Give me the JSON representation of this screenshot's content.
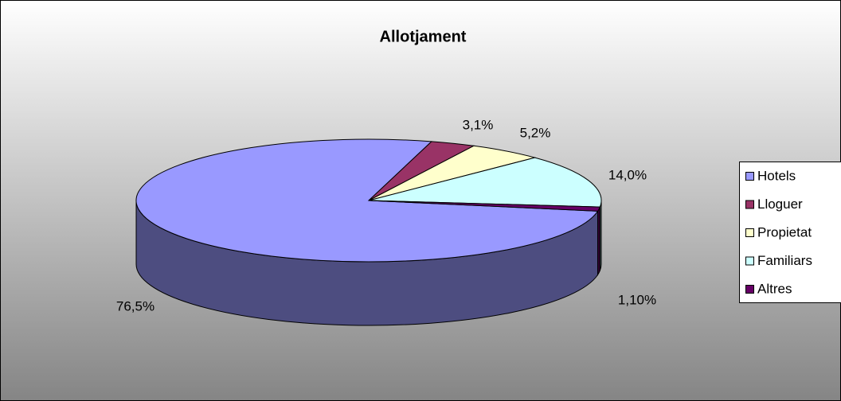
{
  "chart_data": {
    "type": "pie3d",
    "title": "Allotjament",
    "categories": [
      "Hotels",
      "Lloguer",
      "Propietat",
      "Familiars",
      "Altres"
    ],
    "values": [
      76.5,
      3.1,
      5.2,
      14.0,
      1.1
    ],
    "value_labels": [
      "76,5%",
      "3,1%",
      "5,2%",
      "14,0%",
      "1,10%"
    ],
    "colors": [
      "#9999ff",
      "#993366",
      "#ffffcc",
      "#ccffff",
      "#660066"
    ],
    "legend": "right"
  }
}
